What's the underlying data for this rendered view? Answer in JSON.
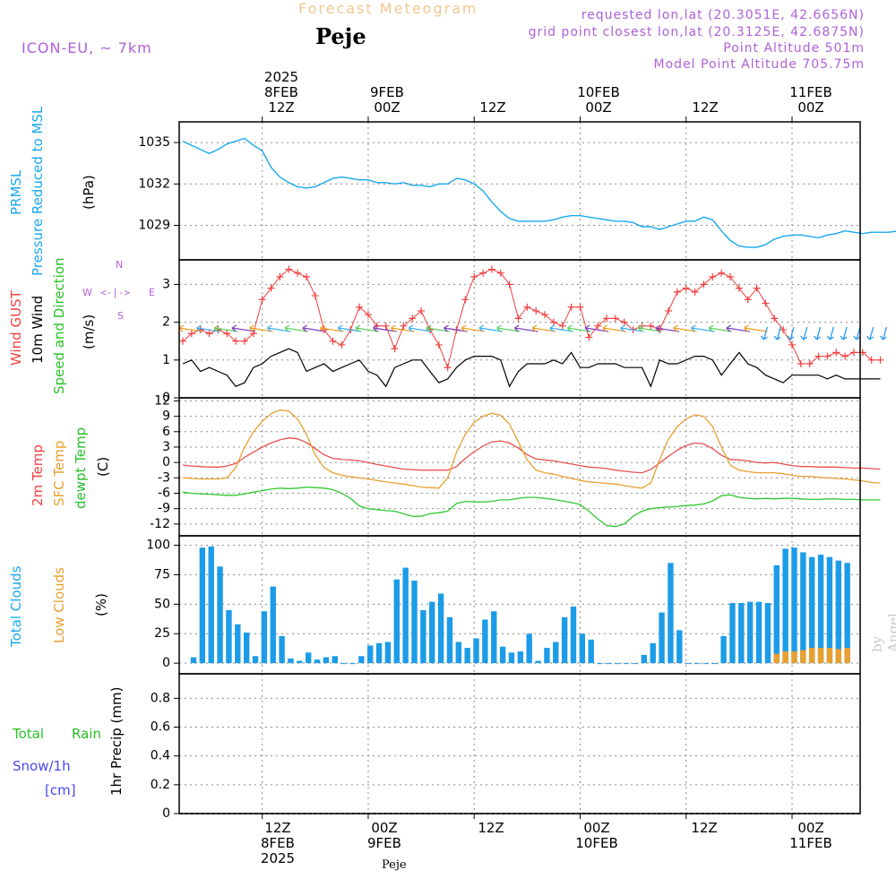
{
  "header": {
    "title": "Forecast Meteogram",
    "location": "Peje",
    "model": "ICON-EU, ~ 7km",
    "requested": "requested lon,lat (20.3051E, 42.6656N)",
    "grid": "grid point closest lon,lat (20.3125E, 42.6875N)",
    "altitude": "Point Altitude 501m",
    "model_altitude": "Model Point Altitude 705.75m"
  },
  "time_axis": {
    "top": [
      [
        "2025",
        "8FEB",
        "12Z"
      ],
      [
        "9FEB",
        "00Z"
      ],
      [
        "12Z"
      ],
      [
        "10FEB",
        "00Z"
      ],
      [
        "12Z"
      ],
      [
        "11FEB",
        "00Z"
      ]
    ],
    "bottom": [
      [
        "12Z",
        "8FEB",
        "2025"
      ],
      [
        "00Z",
        "9FEB"
      ],
      [
        "12Z"
      ],
      [
        "00Z",
        "10FEB"
      ],
      [
        "12Z"
      ],
      [
        "00Z",
        "11FEB"
      ]
    ]
  },
  "labels": {
    "pressure": [
      "PRMSL",
      "Pressure Reduced to MSL",
      "(hPa)"
    ],
    "wind": [
      "Wind GUST",
      "10m Wind",
      "Speed and Direction",
      "(m/s)"
    ],
    "compass": {
      "n": "N",
      "s": "S",
      "w": "W",
      "e": "E",
      "arrows": "<-|->"
    },
    "temp": [
      "2m Temp",
      "SFC Temp",
      "dewpt Temp",
      "(C)"
    ],
    "clouds": [
      "Total Clouds",
      "Low Clouds",
      "(%)"
    ],
    "precip": [
      "1hr Precip (mm)"
    ],
    "rain": {
      "total": "Total",
      "rain": "Rain",
      "snow": "Snow/1h",
      "cm": "[cm]"
    }
  },
  "footer": "Peje",
  "watermark": "by Angel",
  "chart_data": [
    {
      "type": "line",
      "title": "PRMSL Pressure Reduced to MSL",
      "ylabel": "hPa",
      "ylim": [
        1026.5,
        1036.5
      ],
      "yticks": [
        1029,
        1032,
        1035
      ],
      "x_hours": "hours from 2025-02-08 03Z, hourly",
      "series": [
        {
          "name": "PRMSL",
          "color": "#18a8f0",
          "values": [
            1035.1,
            1034.8,
            1034.5,
            1034.2,
            1034.5,
            1034.9,
            1035.1,
            1035.3,
            1034.8,
            1034.4,
            1033.2,
            1032.5,
            1032.1,
            1031.8,
            1031.7,
            1031.8,
            1032.1,
            1032.4,
            1032.5,
            1032.4,
            1032.3,
            1032.3,
            1032.1,
            1032.1,
            1032.0,
            1032.1,
            1031.9,
            1031.9,
            1031.8,
            1032.0,
            1032.0,
            1032.4,
            1032.3,
            1032.0,
            1031.5,
            1030.7,
            1030.0,
            1029.5,
            1029.3,
            1029.3,
            1029.3,
            1029.3,
            1029.4,
            1029.6,
            1029.7,
            1029.7,
            1029.6,
            1029.5,
            1029.4,
            1029.3,
            1029.3,
            1029.2,
            1028.9,
            1028.9,
            1028.7,
            1028.9,
            1029.1,
            1029.3,
            1029.3,
            1029.6,
            1029.4,
            1028.6,
            1027.9,
            1027.5,
            1027.4,
            1027.4,
            1027.6,
            1028.0,
            1028.2,
            1028.3,
            1028.3,
            1028.2,
            1028.1,
            1028.3,
            1028.4,
            1028.6,
            1028.5,
            1028.4,
            1028.5,
            1028.5,
            1028.5,
            1028.6
          ]
        }
      ]
    },
    {
      "type": "line",
      "title": "Wind GUST / 10m Wind Speed and Direction",
      "ylabel": "m/s",
      "ylim": [
        0,
        3.65
      ],
      "yticks": [
        0,
        1,
        2,
        3
      ],
      "series": [
        {
          "name": "Wind GUST",
          "color": "#f04040",
          "markers": "+",
          "values": [
            1.5,
            1.7,
            1.8,
            1.7,
            1.8,
            1.7,
            1.5,
            1.5,
            1.7,
            2.6,
            2.9,
            3.2,
            3.4,
            3.3,
            3.2,
            2.7,
            1.8,
            1.5,
            1.4,
            1.8,
            2.4,
            2.2,
            1.9,
            1.9,
            1.3,
            1.9,
            2.1,
            2.3,
            1.8,
            1.4,
            0.8,
            1.8,
            2.6,
            3.2,
            3.3,
            3.4,
            3.3,
            3.0,
            2.1,
            2.4,
            2.3,
            2.2,
            2.0,
            1.9,
            2.4,
            2.4,
            1.6,
            1.9,
            2.1,
            2.1,
            2.0,
            1.8,
            1.9,
            1.9,
            1.8,
            2.3,
            2.8,
            2.9,
            2.8,
            3.0,
            3.2,
            3.3,
            3.2,
            2.9,
            2.6,
            2.9,
            2.5,
            2.1,
            1.8,
            1.4,
            0.9,
            0.9,
            1.1,
            1.1,
            1.2,
            1.1,
            1.2,
            1.2,
            1.0,
            1.0
          ]
        },
        {
          "name": "10m Wind",
          "color": "#000000",
          "values": [
            0.9,
            1.0,
            0.7,
            0.8,
            0.7,
            0.6,
            0.3,
            0.4,
            0.8,
            0.9,
            1.1,
            1.2,
            1.3,
            1.2,
            0.7,
            0.8,
            0.9,
            0.7,
            0.8,
            0.9,
            1.0,
            0.7,
            0.6,
            0.3,
            0.8,
            0.9,
            1.0,
            1.0,
            0.7,
            0.4,
            0.5,
            0.8,
            1.0,
            1.1,
            1.1,
            1.1,
            1.0,
            0.3,
            0.7,
            0.9,
            0.9,
            0.9,
            1.0,
            0.9,
            1.2,
            0.8,
            0.8,
            0.9,
            0.9,
            0.9,
            0.8,
            0.8,
            0.8,
            0.3,
            1.0,
            0.9,
            0.9,
            1.0,
            1.1,
            1.1,
            1.0,
            0.6,
            0.9,
            1.2,
            0.9,
            0.8,
            0.6,
            0.5,
            0.4,
            0.6,
            0.6,
            0.6,
            0.6,
            0.5,
            0.6,
            0.5,
            0.5,
            0.5,
            0.5,
            0.5
          ]
        }
      ]
    },
    {
      "type": "line",
      "title": "2m Temp / SFC Temp / dewpt Temp",
      "ylabel": "C",
      "ylim": [
        -14.3,
        12.6
      ],
      "yticks": [
        -12,
        -9,
        -6,
        -3,
        0,
        3,
        6,
        9,
        12
      ],
      "series": [
        {
          "name": "2m Temp",
          "color": "#e85050",
          "values": [
            -0.5,
            -0.7,
            -0.8,
            -0.9,
            -0.9,
            -0.7,
            -0.2,
            1.0,
            2.0,
            3.0,
            3.8,
            4.4,
            4.8,
            4.6,
            3.9,
            2.7,
            1.5,
            0.8,
            0.6,
            0.5,
            0.3,
            0.0,
            -0.4,
            -0.7,
            -1.0,
            -1.3,
            -1.4,
            -1.5,
            -1.5,
            -1.5,
            -1.5,
            -0.8,
            0.8,
            2.1,
            3.2,
            4.0,
            4.2,
            3.8,
            2.8,
            1.5,
            0.7,
            0.5,
            0.3,
            0.0,
            -0.3,
            -0.6,
            -0.9,
            -1.0,
            -1.2,
            -1.5,
            -1.7,
            -1.9,
            -2.0,
            -1.4,
            -0.1,
            1.2,
            2.4,
            3.3,
            3.8,
            3.6,
            2.7,
            1.4,
            0.6,
            0.5,
            0.3,
            0.0,
            -0.1,
            0.0,
            -0.3,
            -0.6,
            -0.8,
            -0.8,
            -0.9,
            -0.9,
            -0.9,
            -1.0,
            -1.1,
            -1.1,
            -1.2,
            -1.3
          ]
        },
        {
          "name": "SFC Temp",
          "color": "#e8a030",
          "values": [
            -3.0,
            -3.1,
            -3.2,
            -3.2,
            -3.2,
            -3.0,
            -1.0,
            3.0,
            6.0,
            8.0,
            9.5,
            10.2,
            10.0,
            8.5,
            5.5,
            1.5,
            -1.0,
            -2.0,
            -2.5,
            -2.8,
            -3.0,
            -3.2,
            -3.5,
            -3.8,
            -4.0,
            -4.2,
            -4.5,
            -4.8,
            -4.9,
            -5.0,
            -3.0,
            2.0,
            5.5,
            7.8,
            9.0,
            9.6,
            9.2,
            7.5,
            4.0,
            0.5,
            -1.5,
            -2.0,
            -2.3,
            -2.7,
            -3.1,
            -3.5,
            -3.8,
            -3.9,
            -4.1,
            -4.2,
            -4.5,
            -4.8,
            -5.0,
            -4.0,
            0.5,
            4.5,
            7.0,
            8.5,
            9.3,
            9.0,
            7.0,
            3.0,
            -0.5,
            -1.5,
            -1.8,
            -2.0,
            -2.0,
            -2.0,
            -2.2,
            -2.5,
            -2.7,
            -2.7,
            -2.9,
            -3.0,
            -3.1,
            -3.2,
            -3.4,
            -3.6,
            -3.9,
            -4.0
          ]
        },
        {
          "name": "dewpt Temp",
          "color": "#30c830",
          "values": [
            -5.8,
            -6.0,
            -6.1,
            -6.2,
            -6.3,
            -6.4,
            -6.4,
            -6.1,
            -5.8,
            -5.5,
            -5.2,
            -5.0,
            -5.1,
            -5.0,
            -4.8,
            -4.9,
            -5.0,
            -5.3,
            -6.0,
            -7.0,
            -8.5,
            -9.0,
            -9.2,
            -9.4,
            -9.5,
            -10.0,
            -10.5,
            -10.5,
            -10.0,
            -9.8,
            -9.5,
            -8.0,
            -7.6,
            -7.7,
            -7.7,
            -7.6,
            -7.3,
            -7.3,
            -7.0,
            -6.8,
            -6.8,
            -7.0,
            -7.2,
            -7.5,
            -7.8,
            -8.2,
            -9.5,
            -11.0,
            -12.3,
            -12.5,
            -12.0,
            -10.5,
            -9.5,
            -9.0,
            -8.8,
            -8.7,
            -8.6,
            -8.4,
            -8.3,
            -8.1,
            -7.5,
            -6.5,
            -6.3,
            -6.8,
            -7.0,
            -7.1,
            -7.0,
            -7.1,
            -7.0,
            -7.0,
            -7.1,
            -7.2,
            -7.2,
            -7.1,
            -7.1,
            -7.2,
            -7.2,
            -7.3,
            -7.3,
            -7.3
          ]
        }
      ]
    },
    {
      "type": "bar",
      "title": "Total Clouds / Low Clouds",
      "ylabel": "%",
      "ylim": [
        -9,
        108
      ],
      "yticks": [
        0,
        25,
        50,
        75,
        100
      ],
      "series": [
        {
          "name": "Total Clouds",
          "color": "#1c9ce8",
          "values": [
            5,
            98,
            99,
            82,
            45,
            33,
            26,
            6,
            44,
            65,
            23,
            4,
            2,
            9,
            3,
            5,
            6,
            0,
            0,
            6,
            15,
            17,
            18,
            71,
            81,
            70,
            45,
            52,
            59,
            39,
            18,
            13,
            21,
            37,
            44,
            14,
            9,
            10,
            25,
            2,
            13,
            18,
            39,
            48,
            25,
            20,
            0,
            0,
            0,
            0,
            0,
            7,
            17,
            43,
            85,
            28,
            0,
            0,
            0,
            0,
            23,
            51,
            51,
            52,
            52,
            51,
            83,
            97,
            98,
            94,
            90,
            92,
            90,
            87,
            85
          ]
        },
        {
          "name": "Low Clouds",
          "color": "#e8a030",
          "values": [
            0,
            0,
            0,
            0,
            0,
            0,
            0,
            0,
            0,
            0,
            0,
            0,
            0,
            0,
            0,
            0,
            0,
            0,
            0,
            0,
            0,
            0,
            0,
            0,
            0,
            0,
            0,
            0,
            0,
            0,
            0,
            0,
            0,
            0,
            0,
            0,
            0,
            0,
            0,
            0,
            0,
            0,
            0,
            0,
            0,
            0,
            0,
            0,
            0,
            0,
            0,
            0,
            0,
            0,
            0,
            0,
            0,
            0,
            0,
            0,
            0,
            0,
            0,
            0,
            0,
            0,
            8,
            10,
            10,
            11,
            13,
            13,
            13,
            12,
            13
          ]
        }
      ]
    },
    {
      "type": "bar",
      "title": "1hr Precip",
      "ylabel": "mm",
      "ylim": [
        0,
        0.97
      ],
      "yticks": [
        0,
        0.2,
        0.4,
        0.6,
        0.8
      ],
      "series": [
        {
          "name": "1hr Precip",
          "values": []
        }
      ]
    }
  ]
}
